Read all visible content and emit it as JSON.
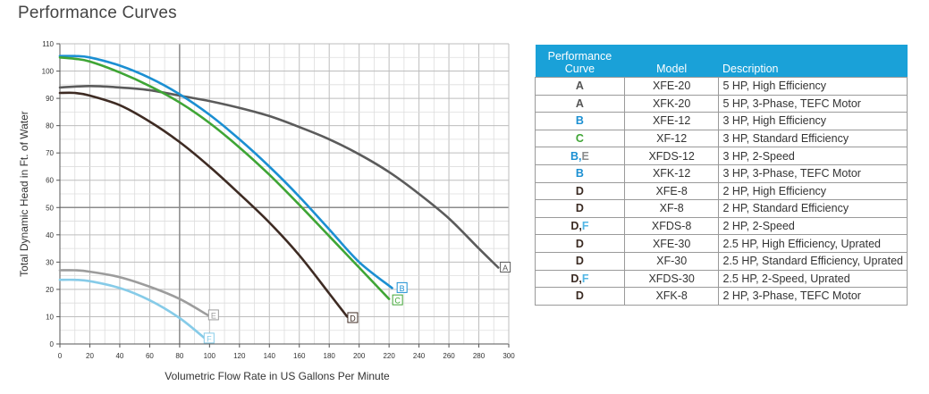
{
  "page": {
    "title": "Performance Curves"
  },
  "chart_data": {
    "type": "line",
    "xlabel": "Volumetric Flow Rate in US Gallons Per Minute",
    "ylabel": "Total Dynamic Head in Ft. of Water",
    "xlim": [
      0,
      300
    ],
    "ylim": [
      0,
      110
    ],
    "xticks": [
      0,
      20,
      40,
      60,
      80,
      100,
      120,
      140,
      160,
      180,
      200,
      220,
      240,
      260,
      280,
      300
    ],
    "yticks": [
      0,
      10,
      20,
      30,
      40,
      50,
      60,
      70,
      80,
      90,
      100,
      110
    ],
    "grid": true,
    "series": [
      {
        "name": "A",
        "color": "#5b5b5b",
        "x": [
          0,
          20,
          40,
          60,
          80,
          100,
          120,
          140,
          160,
          180,
          200,
          220,
          240,
          260,
          280,
          293
        ],
        "y": [
          94,
          94.5,
          94,
          93,
          91,
          89,
          86.5,
          83.5,
          79.5,
          75,
          69.5,
          63,
          55,
          46,
          35,
          28
        ]
      },
      {
        "name": "B",
        "color": "#1b8fd2",
        "x": [
          0,
          10,
          20,
          40,
          60,
          80,
          100,
          120,
          140,
          160,
          180,
          200,
          222
        ],
        "y": [
          105.5,
          105.5,
          105,
          102,
          97.5,
          91.5,
          84,
          75,
          65,
          54,
          42,
          30,
          20.5
        ]
      },
      {
        "name": "C",
        "color": "#3fa535",
        "x": [
          0,
          10,
          20,
          40,
          60,
          80,
          100,
          120,
          140,
          160,
          180,
          200,
          220
        ],
        "y": [
          105,
          104.5,
          103.5,
          99.5,
          94.5,
          88.5,
          81,
          72,
          62,
          51,
          39.5,
          28,
          16.5
        ]
      },
      {
        "name": "D",
        "color": "#3e2b23",
        "x": [
          0,
          10,
          20,
          40,
          60,
          80,
          100,
          120,
          140,
          160,
          180,
          192
        ],
        "y": [
          92,
          92,
          91,
          87.5,
          81.5,
          74,
          65,
          55,
          44.5,
          32.5,
          18.5,
          10
        ]
      },
      {
        "name": "E",
        "color": "#9c9c9c",
        "x": [
          0,
          10,
          20,
          40,
          60,
          80,
          99
        ],
        "y": [
          27,
          27,
          26.5,
          24.5,
          21,
          16.5,
          10.5
        ]
      },
      {
        "name": "F",
        "color": "#86cbe8",
        "x": [
          0,
          10,
          20,
          40,
          60,
          80,
          97
        ],
        "y": [
          23.5,
          23.5,
          23,
          20.5,
          16,
          9.5,
          2
        ]
      }
    ],
    "curve_labels": [
      {
        "text": "A",
        "x": 295,
        "y": 28,
        "color": "#5b5b5b"
      },
      {
        "text": "B",
        "x": 226,
        "y": 20.5,
        "color": "#1b8fd2"
      },
      {
        "text": "C",
        "x": 223,
        "y": 16,
        "color": "#3fa535"
      },
      {
        "text": "D",
        "x": 193,
        "y": 9.5,
        "color": "#3e2b23"
      },
      {
        "text": "E",
        "x": 100,
        "y": 10.5,
        "color": "#9c9c9c"
      },
      {
        "text": "F",
        "x": 97,
        "y": 2,
        "color": "#86cbe8"
      }
    ]
  },
  "table": {
    "headers": {
      "curve": "Performance Curve",
      "model": "Model",
      "description": "Description"
    },
    "curve_colors": {
      "A": "#555555",
      "B": "#1b8fd2",
      "C": "#3fa535",
      "D": "#3a2a22",
      "E": "#8c8c8c",
      "F": "#52b6e5"
    },
    "rows": [
      {
        "curve": [
          "A"
        ],
        "model": "XFE-20",
        "description": "5 HP, High Efficiency"
      },
      {
        "curve": [
          "A"
        ],
        "model": "XFK-20",
        "description": "5 HP, 3-Phase, TEFC Motor"
      },
      {
        "curve": [
          "B"
        ],
        "model": "XFE-12",
        "description": "3 HP, High Efficiency"
      },
      {
        "curve": [
          "C"
        ],
        "model": "XF-12",
        "description": "3 HP, Standard Efficiency"
      },
      {
        "curve": [
          "B",
          "E"
        ],
        "model": "XFDS-12",
        "description": "3 HP, 2-Speed"
      },
      {
        "curve": [
          "B"
        ],
        "model": "XFK-12",
        "description": "3 HP, 3-Phase, TEFC Motor"
      },
      {
        "curve": [
          "D"
        ],
        "model": "XFE-8",
        "description": "2 HP, High Efficiency"
      },
      {
        "curve": [
          "D"
        ],
        "model": "XF-8",
        "description": "2 HP, Standard Efficiency"
      },
      {
        "curve": [
          "D",
          "F"
        ],
        "model": "XFDS-8",
        "description": "2 HP, 2-Speed"
      },
      {
        "curve": [
          "D"
        ],
        "model": "XFE-30",
        "description": "2.5 HP, High Efficiency, Uprated"
      },
      {
        "curve": [
          "D"
        ],
        "model": "XF-30",
        "description": "2.5 HP, Standard Efficiency, Uprated"
      },
      {
        "curve": [
          "D",
          "F"
        ],
        "model": "XFDS-30",
        "description": "2.5 HP, 2-Speed, Uprated"
      },
      {
        "curve": [
          "D"
        ],
        "model": "XFK-8",
        "description": "2 HP, 3-Phase, TEFC Motor"
      }
    ]
  }
}
